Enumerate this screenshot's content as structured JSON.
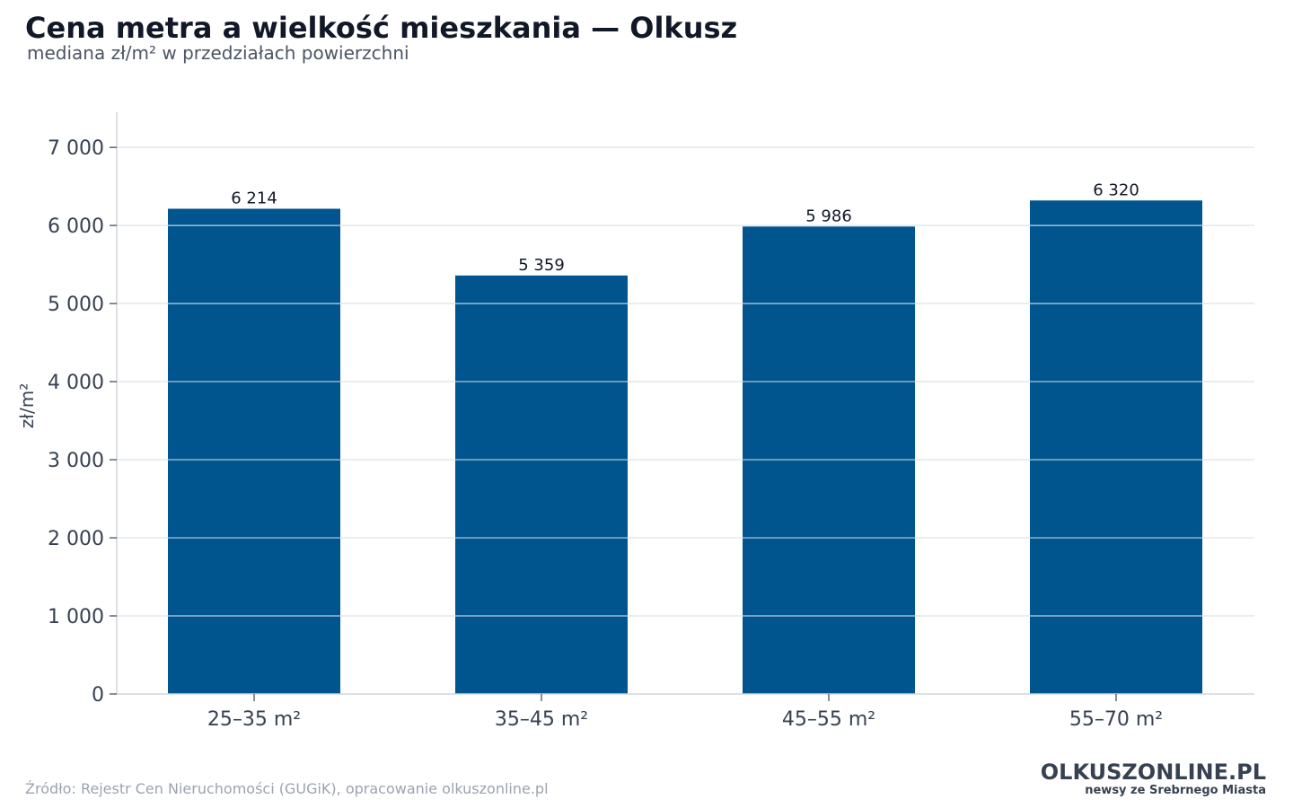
{
  "header": {
    "title": "Cena metra a wielkość mieszkania — Olkusz",
    "subtitle": "mediana zł/m² w przedziałach powierzchni"
  },
  "chart_data": {
    "type": "bar",
    "categories": [
      "25–35 m²",
      "35–45 m²",
      "45–55 m²",
      "55–70 m²"
    ],
    "values": [
      6214,
      5359,
      5986,
      6320
    ],
    "value_labels": [
      "6 214",
      "5 359",
      "5 986",
      "6 320"
    ],
    "ylabel": "zł/m²",
    "ylim": [
      0,
      7450
    ],
    "yticks": [
      0,
      1000,
      2000,
      3000,
      4000,
      5000,
      6000,
      7000
    ],
    "ytick_labels": [
      "0",
      "1 000",
      "2 000",
      "3 000",
      "4 000",
      "5 000",
      "6 000",
      "7 000"
    ],
    "grid": true,
    "colors": {
      "bar": "#00558f",
      "grid": "#e5e7eb",
      "axis": "#d1d5db"
    }
  },
  "footer": {
    "source": "Źródło: Rejestr Cen Nieruchomości (GUGiK), opracowanie olkuszonline.pl",
    "logo_name": "OLKUSZONLINE.PL",
    "logo_tagline": "newsy ze Srebrnego Miasta"
  }
}
